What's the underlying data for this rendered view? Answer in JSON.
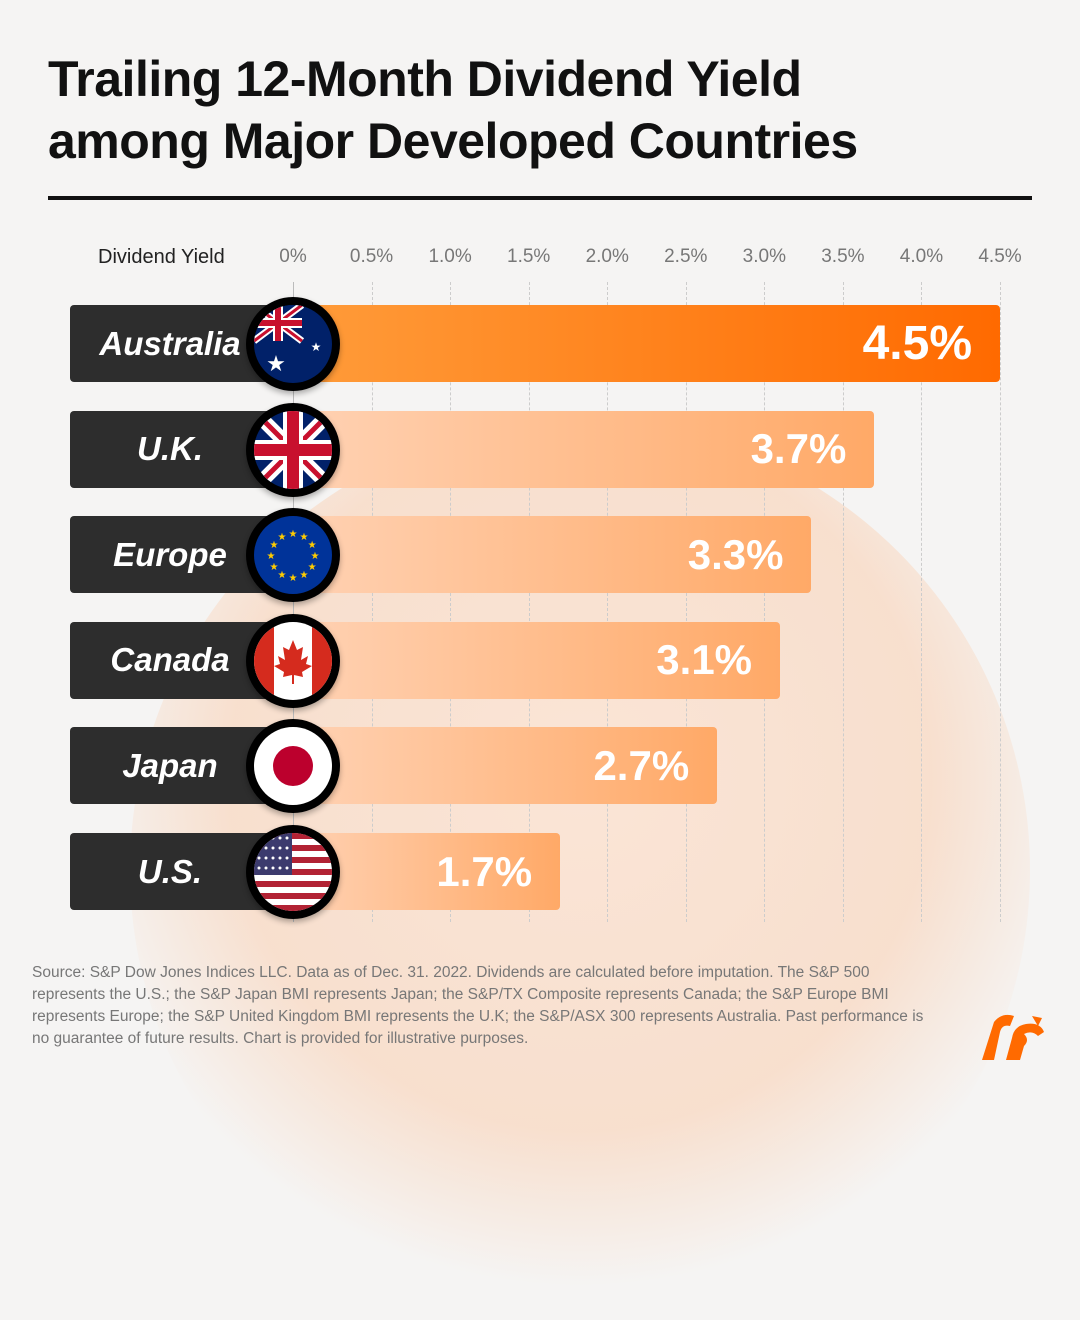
{
  "title_line1": "Trailing 12-Month Dividend Yield",
  "title_line2": "among Major Developed Countries",
  "chart_data": {
    "type": "bar",
    "orientation": "horizontal",
    "title": "Trailing 12-Month Dividend Yield among Major Developed Countries",
    "xlabel": "Dividend Yield",
    "xlim": [
      0,
      4.5
    ],
    "ticks": [
      "0%",
      "0.5%",
      "1.0%",
      "1.5%",
      "2.0%",
      "2.5%",
      "3.0%",
      "3.5%",
      "4.0%",
      "4.5%"
    ],
    "categories": [
      "Australia",
      "U.K.",
      "Europe",
      "Canada",
      "Japan",
      "U.S."
    ],
    "values": [
      4.5,
      3.7,
      3.3,
      3.1,
      2.7,
      1.7
    ],
    "data_labels": [
      "4.5%",
      "3.7%",
      "3.3%",
      "3.1%",
      "2.7%",
      "1.7%"
    ],
    "grid": true,
    "colors": {
      "highlight": "#ff6a00",
      "bar": "#ffa967",
      "label_bg": "#2d2d2d"
    }
  },
  "source": "Source: S&P Dow Jones Indices LLC. Data as of Dec. 31. 2022. Dividends are calculated before imputation. The S&P 500 represents the U.S.; the S&P Japan BMI represents Japan; the S&P/TX Composite represents Canada; the S&P Europe BMI represents Europe; the S&P United Kingdom BMI represents the U.K; the S&P/ASX 300 represents Australia. Past performance is no guarantee of future results. Chart is provided for illustrative purposes."
}
